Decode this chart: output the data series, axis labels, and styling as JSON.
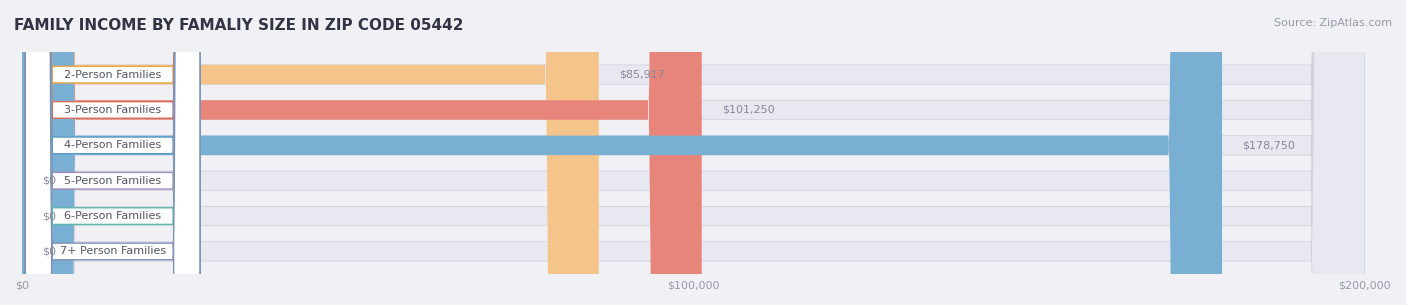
{
  "title": "FAMILY INCOME BY FAMALIY SIZE IN ZIP CODE 05442",
  "source": "Source: ZipAtlas.com",
  "categories": [
    "2-Person Families",
    "3-Person Families",
    "4-Person Families",
    "5-Person Families",
    "6-Person Families",
    "7+ Person Families"
  ],
  "values": [
    85917,
    101250,
    178750,
    0,
    0,
    0
  ],
  "bar_colors": [
    "#f5c48a",
    "#e8857a",
    "#7aafd4",
    "#c9aed4",
    "#7ecfc4",
    "#aab4d4"
  ],
  "label_colors": [
    "#e8a84a",
    "#d96a5a",
    "#5a9bc4",
    "#a08ab8",
    "#5ab8a8",
    "#8090b8"
  ],
  "value_labels": [
    "$85,917",
    "$101,250",
    "$178,750",
    "$0",
    "$0",
    "$0"
  ],
  "xlim": [
    0,
    200000
  ],
  "xticks": [
    0,
    100000,
    200000
  ],
  "xticklabels": [
    "$0",
    "$100,000",
    "$200,000"
  ],
  "background_color": "#f0f0f5",
  "bar_background_color": "#e8e8f0",
  "bar_height": 0.55,
  "title_fontsize": 11,
  "source_fontsize": 8,
  "label_fontsize": 8,
  "value_fontsize": 8
}
